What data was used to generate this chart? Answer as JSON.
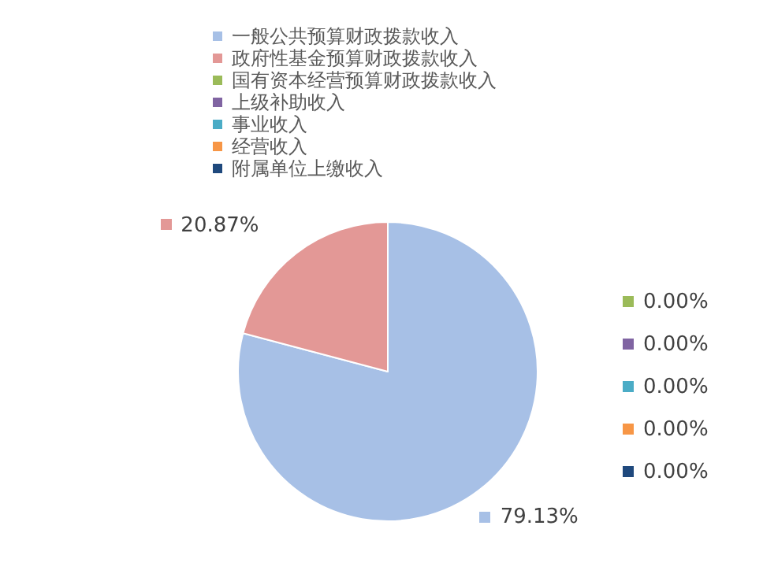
{
  "chart_data": {
    "type": "pie",
    "categories": [
      "一般公共预算财政拨款收入",
      "政府性基金预算财政拨款收入",
      "国有资本经营预算财政拨款收入",
      "上级补助收入",
      "事业收入",
      "经营收入",
      "附属单位上缴收入"
    ],
    "values": [
      79.13,
      20.87,
      0,
      0,
      0,
      0,
      0
    ],
    "colors": [
      "#a7c0e6",
      "#e39896",
      "#9bbb59",
      "#8064a2",
      "#4bacc6",
      "#f79646",
      "#1f497d"
    ],
    "value_labels": [
      "79.13%",
      "20.87%",
      "0.00%",
      "0.00%",
      "0.00%",
      "0.00%",
      "0.00%"
    ],
    "legend": "top"
  }
}
